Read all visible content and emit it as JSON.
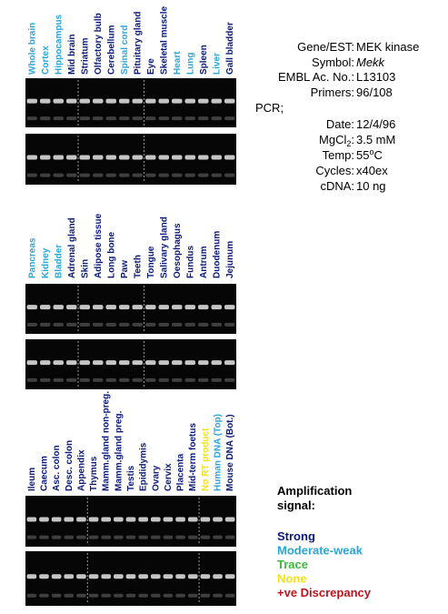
{
  "panels": [
    {
      "lanes": [
        {
          "label": "Whole brain",
          "color": "#2aa6d8"
        },
        {
          "label": "Cortex",
          "color": "#2aa6d8"
        },
        {
          "label": "Hippocampus",
          "color": "#2aa6d8"
        },
        {
          "label": "Mid brain",
          "color": "#0b1a7a"
        },
        {
          "label": "Striatum",
          "color": "#0b1a7a"
        },
        {
          "label": "Olfactory bulb",
          "color": "#0b1a7a"
        },
        {
          "label": "Cerebellum",
          "color": "#0b1a7a"
        },
        {
          "label": "Spinal cord",
          "color": "#2aa6d8"
        },
        {
          "label": "Pituitary gland",
          "color": "#0b1a7a"
        },
        {
          "label": "Eye",
          "color": "#0b1a7a"
        },
        {
          "label": "Skeletal muscle",
          "color": "#0b1a7a"
        },
        {
          "label": "Heart",
          "color": "#2aa6d8"
        },
        {
          "label": "Lung",
          "color": "#2aa6d8"
        },
        {
          "label": "Spleen",
          "color": "#0b1a7a"
        },
        {
          "label": "Liver",
          "color": "#2aa6d8"
        },
        {
          "label": "Gall bladder",
          "color": "#0b1a7a"
        }
      ]
    },
    {
      "lanes": [
        {
          "label": "Pancreas",
          "color": "#2aa6d8"
        },
        {
          "label": "Kidney",
          "color": "#2aa6d8"
        },
        {
          "label": "Bladder",
          "color": "#2aa6d8"
        },
        {
          "label": "Adrenal gland",
          "color": "#0b1a7a"
        },
        {
          "label": "Skin",
          "color": "#0b1a7a"
        },
        {
          "label": "Adipose tissue",
          "color": "#0b1a7a"
        },
        {
          "label": "Long bone",
          "color": "#0b1a7a"
        },
        {
          "label": "Paw",
          "color": "#0b1a7a"
        },
        {
          "label": "Teeth",
          "color": "#0b1a7a"
        },
        {
          "label": "Tongue",
          "color": "#0b1a7a"
        },
        {
          "label": "Salivary gland",
          "color": "#0b1a7a"
        },
        {
          "label": "Oesophagus",
          "color": "#0b1a7a"
        },
        {
          "label": "Fundus",
          "color": "#0b1a7a"
        },
        {
          "label": "Antrum",
          "color": "#0b1a7a"
        },
        {
          "label": "Duodenum",
          "color": "#0b1a7a"
        },
        {
          "label": "Jejunum",
          "color": "#0b1a7a"
        }
      ]
    },
    {
      "lanes": [
        {
          "label": "Ileum",
          "color": "#0b1a7a"
        },
        {
          "label": "Caecum",
          "color": "#0b1a7a"
        },
        {
          "label": "Asc. colon",
          "color": "#0b1a7a"
        },
        {
          "label": "Desc. colon",
          "color": "#0b1a7a"
        },
        {
          "label": "Appendix",
          "color": "#0b1a7a"
        },
        {
          "label": "Thymus",
          "color": "#0b1a7a"
        },
        {
          "label": "Mamm.gland non-preg.",
          "color": "#0b1a7a"
        },
        {
          "label": "Mamm.gland preg.",
          "color": "#0b1a7a"
        },
        {
          "label": "Testis",
          "color": "#0b1a7a"
        },
        {
          "label": "Epididymis",
          "color": "#0b1a7a"
        },
        {
          "label": "Ovary",
          "color": "#0b1a7a"
        },
        {
          "label": "Cervix",
          "color": "#0b1a7a"
        },
        {
          "label": "Placenta",
          "color": "#0b1a7a"
        },
        {
          "label": "Mid-term foetus",
          "color": "#0b1a7a"
        },
        {
          "label": "No RT product",
          "color": "#f2e21c"
        },
        {
          "label": "Human DNA (Top)",
          "color": "#2aa6d8"
        },
        {
          "label": "Mouse DNA (Bot.)",
          "color": "#0b1a7a"
        }
      ]
    }
  ],
  "info": {
    "gene_label": "Gene/EST:",
    "gene": "MEK kinase",
    "symbol_label": "Symbol:",
    "symbol": "Mekk",
    "embl_label": "EMBL Ac. No.:",
    "embl": "L13103",
    "primers_label": "Primers:",
    "primers": "96/108",
    "pcr": "PCR;",
    "date_label": "Date:",
    "date": "12/4/96",
    "mgcl_label": "MgCl",
    "mgcl_sub": "2",
    "mgcl_colon": ":",
    "mgcl": "3.5 mM",
    "temp_label": "Temp:",
    "temp": "55",
    "temp_sup": "o",
    "temp_unit": "C",
    "cycles_label": "Cycles:",
    "cycles": "x40ex",
    "cdna_label": "cDNA:",
    "cdna": "10 ng"
  },
  "legend": {
    "title_line1": "Amplification",
    "title_line2": "signal:",
    "items": [
      {
        "label": "Strong",
        "color": "#0b1a7a"
      },
      {
        "label": "Moderate-weak",
        "color": "#2aa6d8"
      },
      {
        "label": "Trace",
        "color": "#3cb93c"
      },
      {
        "label": "None",
        "color": "#f2e21c"
      },
      {
        "label": "+ve Discrepancy",
        "color": "#c0141c"
      }
    ]
  }
}
